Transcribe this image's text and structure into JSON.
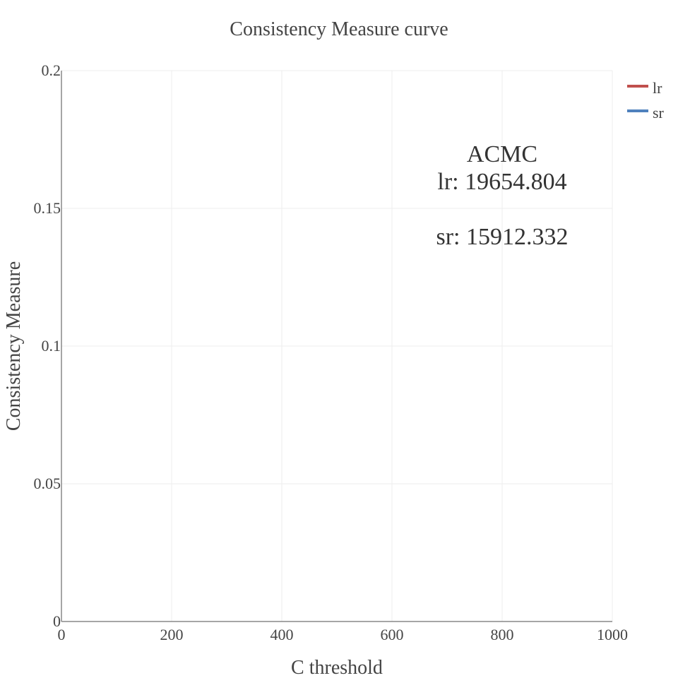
{
  "chart_data": {
    "type": "line",
    "title": "Consistency Measure curve",
    "xlabel": "C threshold",
    "ylabel": "Consistency Measure",
    "xlim": [
      0,
      1000
    ],
    "ylim": [
      0,
      0.2
    ],
    "x_ticks": [
      0,
      200,
      400,
      600,
      800,
      1000
    ],
    "x_tick_labels": [
      "0",
      "200",
      "400",
      "600",
      "800",
      "1000"
    ],
    "y_ticks": [
      0,
      0.05,
      0.1,
      0.15,
      0.2
    ],
    "y_tick_labels": [
      "0",
      "0.05",
      "0.1",
      "0.15",
      "0.2"
    ],
    "grid": true,
    "legend_position": "top-right",
    "series": [
      {
        "name": "lr",
        "color": "#c0504d",
        "x": [],
        "y": []
      },
      {
        "name": "sr",
        "color": "#4f81bd",
        "x": [],
        "y": []
      }
    ],
    "annotation": {
      "line1": "ACMC",
      "line2": "lr: 19654.804",
      "line3": "sr: 15912.332"
    }
  }
}
